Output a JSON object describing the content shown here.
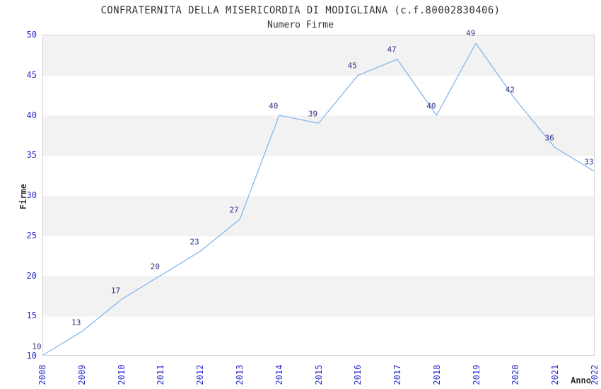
{
  "chart_data": {
    "type": "line",
    "title": "CONFRATERNITA DELLA MISERICORDIA DI MODIGLIANA (c.f.80002830406)",
    "subtitle": "Numero Firme",
    "xlabel": "Anno",
    "ylabel": "Firme",
    "categories": [
      "2008",
      "2009",
      "2010",
      "2011",
      "2012",
      "2013",
      "2014",
      "2015",
      "2016",
      "2017",
      "2018",
      "2019",
      "2020",
      "2021",
      "2022"
    ],
    "values": [
      10,
      13,
      17,
      20,
      23,
      27,
      40,
      39,
      45,
      47,
      40,
      49,
      42,
      36,
      33
    ],
    "ylim": [
      10,
      50
    ],
    "yticks": [
      50,
      45,
      40,
      35,
      30,
      25,
      20,
      15,
      10
    ],
    "grid": "horizontal-bands-alternating",
    "legend": "none",
    "point_labels_shown": true,
    "colors": {
      "line": "#85b7ea",
      "tick_label": "#2929cc",
      "point_label": "#333388",
      "band_gray": "#f2f2f2",
      "band_white": "#ffffff",
      "plot_border": "#d5d5d5",
      "text": "#333333"
    }
  }
}
